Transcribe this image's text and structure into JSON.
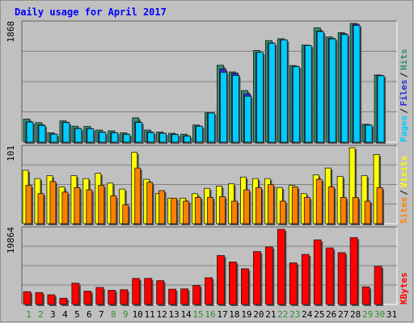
{
  "chart_data": [
    {
      "type": "bar",
      "title": "Daily usage for April 2017",
      "panel": "top",
      "y_max_label": "1868",
      "grid": true,
      "categories": [
        "1",
        "2",
        "3",
        "4",
        "5",
        "6",
        "7",
        "8",
        "9",
        "10",
        "11",
        "12",
        "13",
        "14",
        "15",
        "16",
        "17",
        "18",
        "19",
        "20",
        "21",
        "22",
        "23",
        "24",
        "25",
        "26",
        "27",
        "28",
        "29",
        "30",
        "31"
      ],
      "series": [
        {
          "name": "Hits",
          "color": "#2f8f6f",
          "values": [
            363,
            307,
            147,
            335,
            251,
            247,
            190,
            178,
            147,
            383,
            190,
            159,
            139,
            125,
            270,
            462,
            1210,
            1105,
            812,
            1443,
            1598,
            1628,
            1205,
            1528,
            1800,
            1655,
            1723,
            1868,
            281,
            1057,
            0
          ]
        },
        {
          "name": "Files",
          "color": "#2c2cd8",
          "values": [
            320,
            270,
            128,
            314,
            217,
            215,
            160,
            150,
            126,
            315,
            157,
            142,
            124,
            100,
            253,
            462,
            1150,
            1086,
            760,
            1413,
            1555,
            1611,
            1193,
            1523,
            1747,
            1633,
            1705,
            1856,
            272,
            1050,
            0
          ]
        },
        {
          "name": "Pages",
          "color": "#00ccff",
          "values": [
            316,
            262,
            124,
            308,
            213,
            211,
            155,
            146,
            122,
            309,
            151,
            137,
            119,
            95,
            249,
            458,
            1099,
            1048,
            721,
            1412,
            1555,
            1609,
            1188,
            1520,
            1739,
            1625,
            1692,
            1836,
            268,
            1044,
            0
          ]
        }
      ]
    },
    {
      "type": "bar",
      "panel": "middle",
      "y_max_label": "101",
      "grid": true,
      "categories": [
        "1",
        "2",
        "3",
        "4",
        "5",
        "6",
        "7",
        "8",
        "9",
        "10",
        "11",
        "12",
        "13",
        "14",
        "15",
        "16",
        "17",
        "18",
        "19",
        "20",
        "21",
        "22",
        "23",
        "24",
        "25",
        "26",
        "27",
        "28",
        "29",
        "30",
        "31"
      ],
      "series": [
        {
          "name": "Visits",
          "color": "#ffff00",
          "values": [
            71,
            60,
            64,
            49,
            64,
            60,
            67,
            54,
            46,
            95,
            59,
            40,
            34,
            34,
            40,
            47,
            50,
            53,
            62,
            60,
            60,
            48,
            51,
            40,
            65,
            74,
            63,
            101,
            64,
            92,
            0
          ]
        },
        {
          "name": "Sites",
          "color": "#ff8000",
          "values": [
            51,
            40,
            56,
            42,
            48,
            45,
            51,
            37,
            25,
            74,
            55,
            44,
            34,
            30,
            35,
            35,
            36,
            30,
            45,
            48,
            52,
            30,
            49,
            35,
            59,
            49,
            35,
            35,
            30,
            48,
            0
          ]
        }
      ]
    },
    {
      "type": "bar",
      "panel": "bottom",
      "y_max_label": "19864",
      "grid": true,
      "categories": [
        "1",
        "2",
        "3",
        "4",
        "5",
        "6",
        "7",
        "8",
        "9",
        "10",
        "11",
        "12",
        "13",
        "14",
        "15",
        "16",
        "17",
        "18",
        "19",
        "20",
        "21",
        "22",
        "23",
        "24",
        "25",
        "26",
        "27",
        "28",
        "29",
        "30",
        "31"
      ],
      "series": [
        {
          "name": "KBytes",
          "color": "#ff0000",
          "values": [
            3371,
            3144,
            2546,
            1647,
            5614,
            3521,
            4494,
            3746,
            3896,
            6886,
            6891,
            6288,
            4038,
            4113,
            5015,
            7062,
            12938,
            11230,
            9433,
            13989,
            15188,
            19864,
            10987,
            13235,
            17080,
            14934,
            13686,
            17680,
            4643,
            10055,
            0
          ]
        }
      ]
    }
  ],
  "weekend_days": [
    "1",
    "2",
    "8",
    "9",
    "15",
    "16",
    "22",
    "23",
    "29",
    "30"
  ],
  "colors": {
    "background": "#c0c0c0",
    "frame": "#909090",
    "title": "#0000ff",
    "axis_text": "#000000",
    "weekend_label": "#2f8f2f",
    "grid": "#808080",
    "bar_outline": "#1a1a1a"
  }
}
